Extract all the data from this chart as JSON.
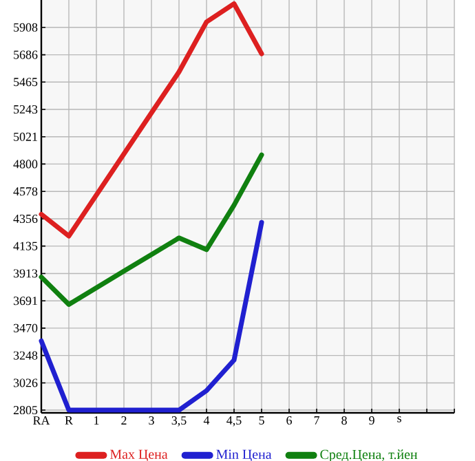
{
  "chart_data": {
    "type": "line",
    "categories": [
      "RA",
      "R",
      "1",
      "2",
      "3",
      "3,5",
      "4",
      "4,5",
      "5",
      "6",
      "7",
      "8",
      "9",
      "s",
      null,
      null
    ],
    "series": [
      {
        "name": "Max Цена",
        "color": "#dd2020",
        "values": [
          4393,
          4216,
          4549,
          4882,
          5215,
          5547,
          5952,
          6100,
          5694,
          null,
          null,
          null,
          null,
          null,
          null,
          null
        ]
      },
      {
        "name": "Min Цена",
        "color": "#2020d0",
        "values": [
          3366,
          2805,
          2805,
          2805,
          2805,
          2805,
          2963,
          3211,
          4327,
          null,
          null,
          null,
          null,
          null,
          null,
          null
        ]
      },
      {
        "name": "Сред.Цена, т.йен",
        "color": "#108010",
        "values": [
          3884,
          3662,
          3797,
          3932,
          4066,
          4201,
          4106,
          4467,
          4874,
          null,
          null,
          null,
          null,
          null,
          null,
          null
        ]
      }
    ],
    "ylim": [
      2783,
      6130
    ],
    "yticks": [
      2805,
      3026,
      3248,
      3470,
      3691,
      3913,
      4135,
      4356,
      4578,
      4800,
      5021,
      5243,
      5465,
      5686,
      5908
    ],
    "grid": true,
    "legend": "bottom",
    "marker": "none",
    "line_style": "solid"
  }
}
